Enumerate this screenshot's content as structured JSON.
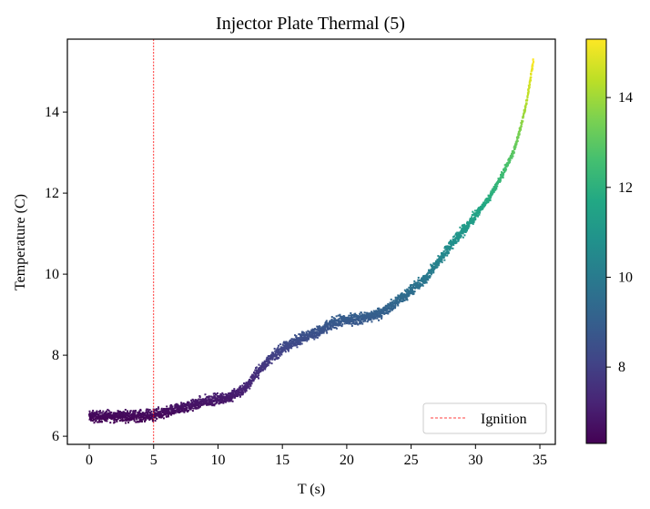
{
  "chart_data": {
    "type": "scatter",
    "title": "Injector Plate Thermal (5)",
    "xlabel": "T (s)",
    "ylabel": "Temperature (C)",
    "xlim": [
      -1.7,
      36.2
    ],
    "ylim": [
      5.8,
      15.8
    ],
    "x_ticks": [
      0,
      5,
      10,
      15,
      20,
      25,
      30,
      35
    ],
    "y_ticks": [
      6,
      8,
      10,
      12,
      14
    ],
    "grid": false,
    "colormap": "viridis",
    "colorbar": {
      "range": [
        6.3,
        15.3
      ],
      "ticks": [
        8,
        10,
        12,
        14
      ]
    },
    "ignition": {
      "x": 5,
      "label": "Ignition",
      "color": "#ff0000",
      "style": "dashed"
    },
    "legend_position": "lower-right",
    "series": [
      {
        "curve_points": [
          [
            0,
            6.48
          ],
          [
            2,
            6.5
          ],
          [
            4,
            6.5
          ],
          [
            5,
            6.52
          ],
          [
            6,
            6.58
          ],
          [
            7,
            6.68
          ],
          [
            8,
            6.76
          ],
          [
            9,
            6.86
          ],
          [
            10,
            6.92
          ],
          [
            11,
            6.98
          ],
          [
            12,
            7.15
          ],
          [
            13,
            7.55
          ],
          [
            14,
            7.9
          ],
          [
            15,
            8.15
          ],
          [
            16,
            8.35
          ],
          [
            17,
            8.5
          ],
          [
            18,
            8.6
          ],
          [
            19,
            8.8
          ],
          [
            20,
            8.87
          ],
          [
            21,
            8.9
          ],
          [
            22,
            8.97
          ],
          [
            23,
            9.1
          ],
          [
            24,
            9.35
          ],
          [
            25,
            9.6
          ],
          [
            26,
            9.85
          ],
          [
            27,
            10.25
          ],
          [
            28,
            10.7
          ],
          [
            29,
            11.05
          ],
          [
            30,
            11.45
          ],
          [
            31,
            11.85
          ],
          [
            32,
            12.4
          ],
          [
            33,
            13.05
          ],
          [
            33.5,
            13.6
          ],
          [
            34,
            14.3
          ],
          [
            34.5,
            15.25
          ]
        ],
        "noise_amplitude": 0.2
      }
    ]
  }
}
